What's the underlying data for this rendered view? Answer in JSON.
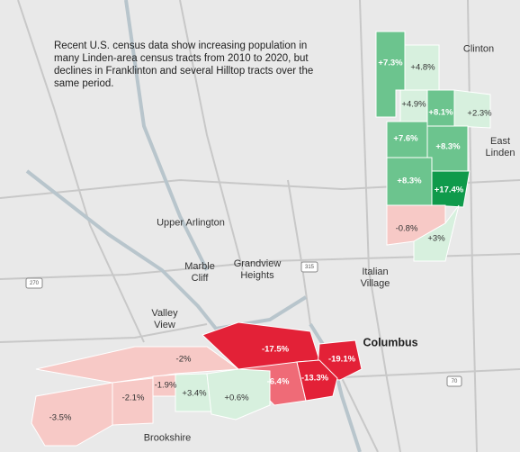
{
  "annotation": "Recent U.S. census data show increasing population in many Linden-area census tracts from 2010 to 2020, but declines in Franklinton and several Hilltop tracts over the same period.",
  "places": [
    "Clinton",
    "East Linden",
    "Upper Arlington",
    "Marble Cliff",
    "Grandview Heights",
    "Italian Village",
    "Valley View",
    "Columbus",
    "Brookshire"
  ],
  "highways": [
    "270",
    "315",
    "70"
  ],
  "tracts": [
    "+7.3%",
    "+4.8%",
    "+4.9%",
    "+8.1%",
    "+2.3%",
    "+7.6%",
    "+8.3%",
    "+8.3%",
    "+17.4%",
    "-0.8%",
    "+3%",
    "-17.5%",
    "-19.1%",
    "-6.4%",
    "-13.3%",
    "-2%",
    "-2.1%",
    "-1.9%",
    "+3.4%",
    "+0.6%",
    "-3.5%"
  ]
}
